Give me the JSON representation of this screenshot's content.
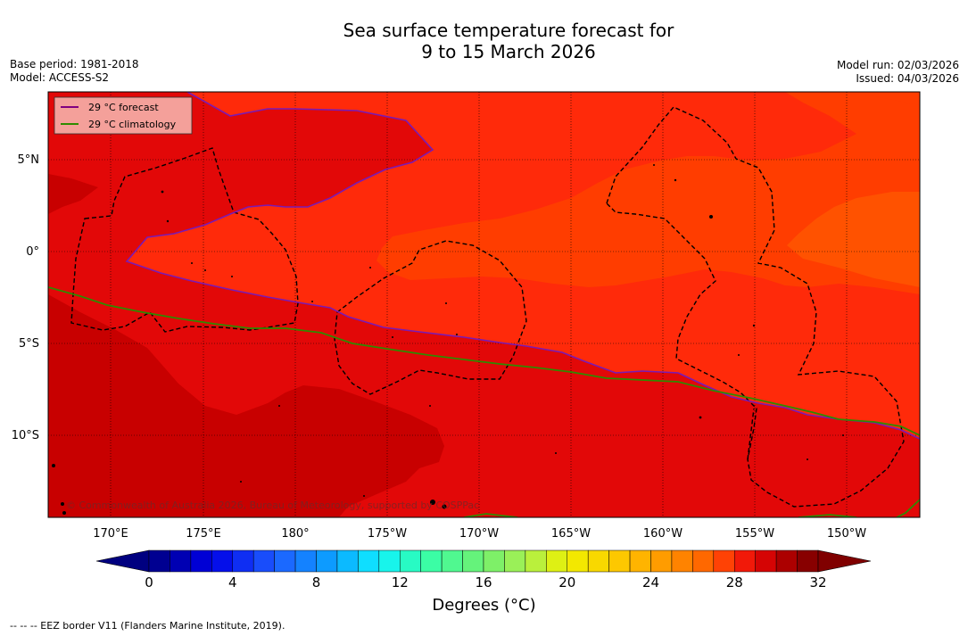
{
  "title_line1": "Sea surface temperature forecast for",
  "title_line2": "9 to 15 March 2026",
  "base_period": "Base period: 1981-2018",
  "model": "Model: ACCESS-S2",
  "model_run": "Model run: 02/03/2026",
  "issued": "Issued: 04/03/2026",
  "legend": {
    "forecast": "29 °C  forecast",
    "climatology": "29 °C  climatology",
    "forecast_color": "#800080",
    "climatology_color": "#2e8b00"
  },
  "lat_labels": [
    "5°N",
    "0°",
    "5°S",
    "10°S"
  ],
  "lon_labels": [
    "170°E",
    "175°E",
    "180°",
    "175°W",
    "170°W",
    "165°W",
    "160°W",
    "155°W",
    "150°W"
  ],
  "colorbar": {
    "ticks": [
      "0",
      "4",
      "8",
      "12",
      "16",
      "20",
      "24",
      "28",
      "32"
    ],
    "label": "Degrees (°C)",
    "vmin": 0,
    "vmax": 32,
    "step": 1
  },
  "copyright": "© Commonwealth of Australia 2026, Bureau of Meteorology, supported by COSPPac",
  "source_note": "--  --  -- EEZ border V11 (Flanders Marine Institute, 2019).",
  "colors": {
    "sst_28_29": "#ff2a0a",
    "sst_29_30": "#e20808",
    "sst_30_31": "#c80000",
    "sst_27_28": "#ff3d00",
    "sst_26_27": "#ff5200"
  }
}
